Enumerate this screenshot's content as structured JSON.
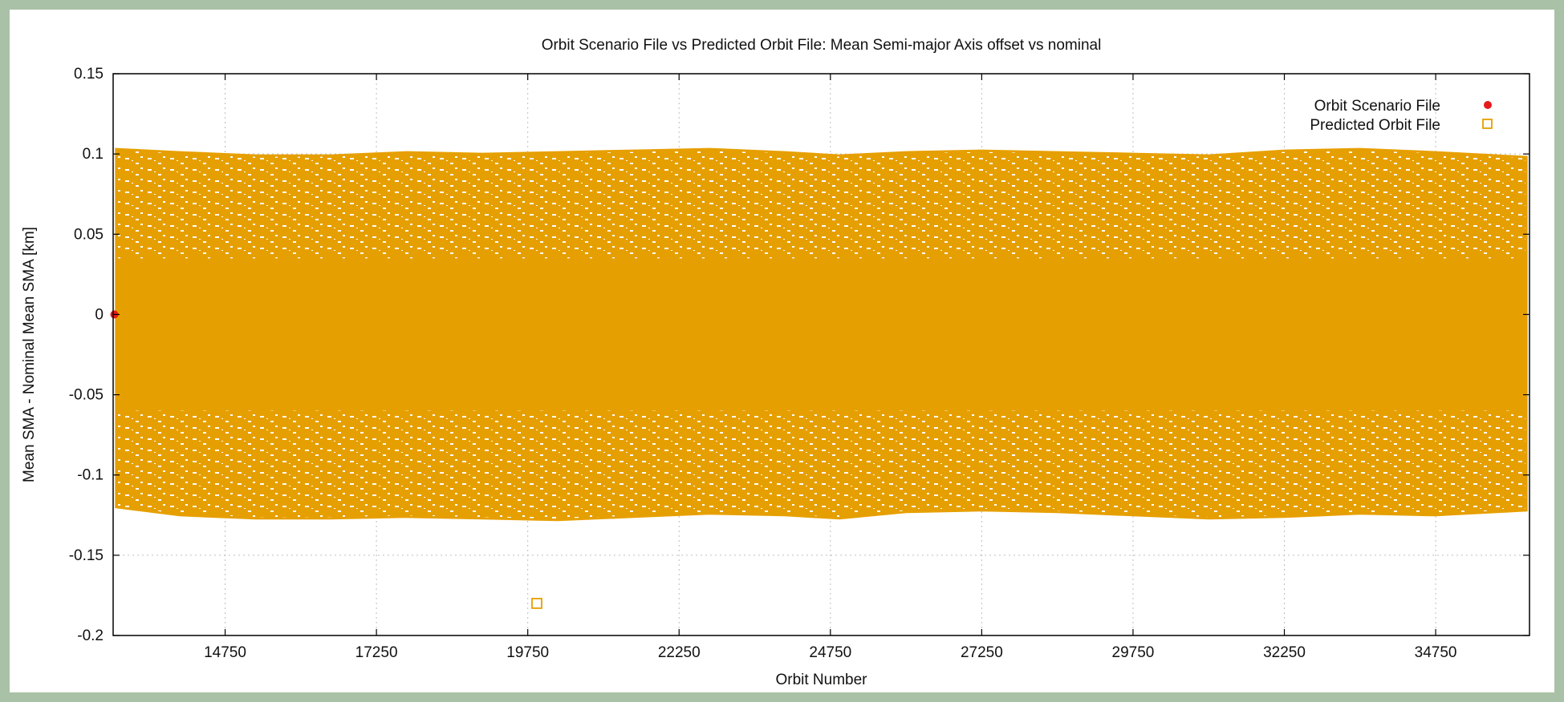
{
  "chart_data": {
    "type": "scatter",
    "title": "Orbit Scenario File vs Predicted Orbit File: Mean Semi-major Axis offset vs nominal",
    "xlabel": "Orbit Number",
    "ylabel": "Mean SMA - Nominal Mean SMA [km]",
    "xlim": [
      12900,
      36300
    ],
    "ylim": [
      -0.2,
      0.15
    ],
    "xticks": [
      14750,
      17250,
      19750,
      22250,
      24750,
      27250,
      29750,
      32250,
      34750
    ],
    "xtick_labels": [
      "14750",
      "17250",
      "19750",
      "22250",
      "24750",
      "27250",
      "29750",
      "32250",
      "34750"
    ],
    "yticks": [
      -0.2,
      -0.15,
      -0.1,
      -0.05,
      0,
      0.05,
      0.1,
      0.15
    ],
    "ytick_labels": [
      "-0.2",
      "-0.15",
      "-0.1",
      "-0.05",
      "0",
      "0.05",
      "0.1",
      "0.15"
    ],
    "grid": true,
    "legend_position": "top-right",
    "series": [
      {
        "name": "Orbit Scenario File",
        "marker": "filled-circle",
        "color": "#e41a1c",
        "points": [
          [
            12920,
            0.0
          ]
        ]
      },
      {
        "name": "Predicted Orbit File",
        "marker": "open-square",
        "color": "#e69f00",
        "envelope": {
          "x": [
            12950,
            14000,
            15250,
            16500,
            17750,
            19000,
            20250,
            21500,
            22750,
            24000,
            24900,
            26000,
            27250,
            28500,
            29750,
            31000,
            32250,
            33500,
            34750,
            36250
          ],
          "upper": [
            0.103,
            0.101,
            0.099,
            0.099,
            0.101,
            0.1,
            0.101,
            0.102,
            0.103,
            0.101,
            0.099,
            0.101,
            0.102,
            0.101,
            0.1,
            0.099,
            0.102,
            0.103,
            0.101,
            0.098
          ],
          "lower": [
            -0.12,
            -0.125,
            -0.127,
            -0.127,
            -0.126,
            -0.127,
            -0.128,
            -0.126,
            -0.124,
            -0.125,
            -0.127,
            -0.123,
            -0.122,
            -0.123,
            -0.125,
            -0.127,
            -0.126,
            -0.124,
            -0.125,
            -0.122
          ],
          "dense_core": [
            -0.06,
            0.035
          ]
        },
        "outliers": [
          [
            19900,
            -0.18
          ]
        ]
      }
    ]
  }
}
